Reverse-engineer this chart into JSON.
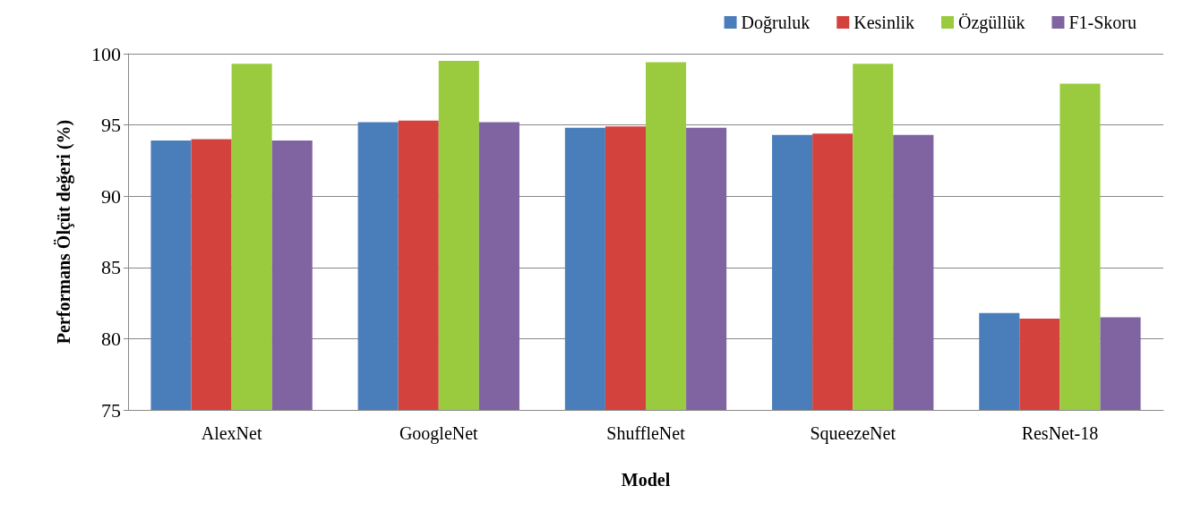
{
  "chart_data": {
    "type": "bar",
    "xlabel": "Model",
    "ylabel": "Performans Ölçüt değeri (%)",
    "categories": [
      "AlexNet",
      "GoogleNet",
      "ShuffleNet",
      "SqueezeNet",
      "ResNet-18"
    ],
    "series": [
      {
        "name": "Doğruluk",
        "color": "#4a7ebb",
        "values": [
          93.9,
          95.2,
          94.8,
          94.3,
          81.8
        ]
      },
      {
        "name": "Kesinlik",
        "color": "#d4423e",
        "values": [
          94.0,
          95.3,
          94.9,
          94.4,
          81.4
        ]
      },
      {
        "name": "Özgüllük",
        "color": "#9acb3f",
        "values": [
          99.3,
          99.5,
          99.4,
          99.3,
          97.9
        ]
      },
      {
        "name": "F1-Skoru",
        "color": "#8064a2",
        "values": [
          93.9,
          95.2,
          94.8,
          94.3,
          81.5
        ]
      }
    ],
    "ylim": [
      75,
      100
    ],
    "yticks": [
      75,
      80,
      85,
      90,
      95,
      100
    ],
    "grid": "y",
    "legend": "top right"
  }
}
